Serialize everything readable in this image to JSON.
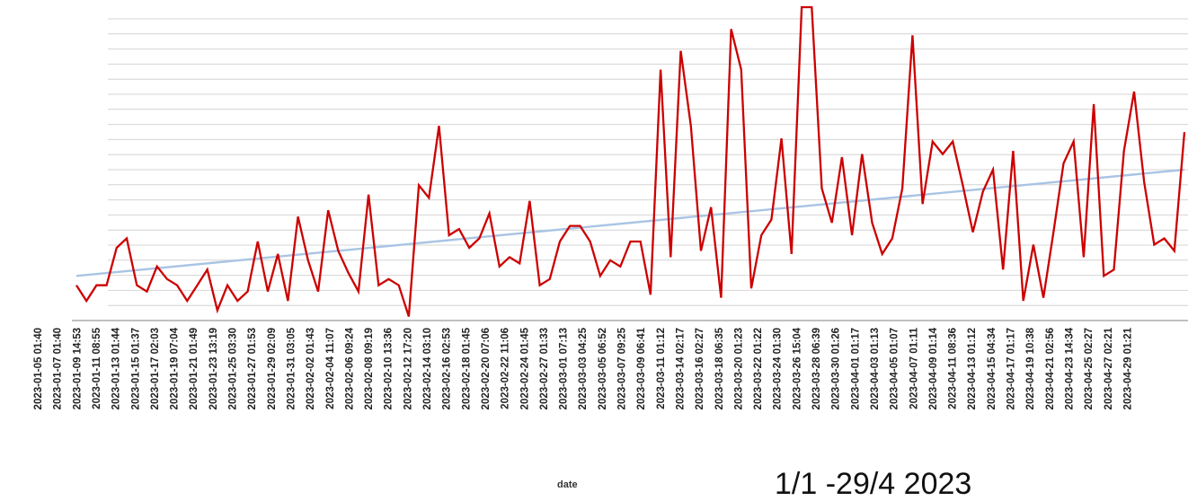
{
  "chart_data": {
    "type": "line",
    "title": "",
    "xlabel": "date",
    "ylabel": "",
    "caption": "1/1 -29/4 2023",
    "ylim": [
      0,
      100
    ],
    "grid": true,
    "x_ticks": [
      "2023-01-05 01:40",
      "2023-01-07 01:40",
      "2023-01-09 14:53",
      "2023-01-11 08:55",
      "2023-01-13 01:44",
      "2023-01-15 01:37",
      "2023-01-17 02:03",
      "2023-01-19 07:04",
      "2023-01-21 01:49",
      "2023-01-23 13:19",
      "2023-01-25 03:30",
      "2023-01-27 01:53",
      "2023-01-29 02:09",
      "2023-01-31 03:05",
      "2023-02-02 01:43",
      "2023-02-04 11:07",
      "2023-02-06 09:24",
      "2023-02-08 09:19",
      "2023-02-10 13:36",
      "2023-02-12 17:20",
      "2023-02-14 03:10",
      "2023-02-16 02:53",
      "2023-02-18 01:45",
      "2023-02-20 07:06",
      "2023-02-22 11:06",
      "2023-02-24 01:45",
      "2023-02-27 01:33",
      "2023-03-01 07:13",
      "2023-03-03 04:25",
      "2023-03-05 06:52",
      "2023-03-07 09:25",
      "2023-03-09 06:41",
      "2023-03-11 01:12",
      "2023-03-14 02:17",
      "2023-03-16 02:27",
      "2023-03-18 06:35",
      "2023-03-20 01:23",
      "2023-03-22 01:22",
      "2023-03-24 01:30",
      "2023-03-26 15:04",
      "2023-03-28 06:39",
      "2023-03-30 01:26",
      "2023-04-01 01:17",
      "2023-04-03 01:13",
      "2023-04-05 01:07",
      "2023-04-07 01:11",
      "2023-04-09 01:14",
      "2023-04-11 08:36",
      "2023-04-13 01:12",
      "2023-04-15 04:34",
      "2023-04-17 01:17",
      "2023-04-19 10:38",
      "2023-04-21 02:56",
      "2023-04-23 14:34",
      "2023-04-25 02:27",
      "2023-04-27 02:21",
      "2023-04-29 01:21"
    ],
    "series": [
      {
        "color": "#cc0000",
        "values": [
          11,
          6,
          11,
          11,
          23,
          26,
          11,
          9,
          17,
          13,
          11,
          6,
          11,
          16,
          3,
          11,
          6,
          9,
          25,
          9,
          21,
          6,
          33,
          19,
          9,
          35,
          22,
          15,
          9,
          40,
          11,
          13,
          11,
          1,
          43,
          39,
          62,
          27,
          29,
          23,
          26,
          34,
          17,
          20,
          18,
          38,
          11,
          13,
          25,
          30,
          30,
          25,
          14,
          19,
          17,
          25,
          25,
          8,
          80,
          20,
          86,
          62,
          22,
          36,
          7,
          93,
          80,
          10,
          27,
          32,
          58,
          21,
          100,
          100,
          42,
          31,
          52,
          27,
          53,
          31,
          21,
          26,
          42,
          91,
          37,
          57,
          53,
          57,
          43,
          28,
          41,
          48,
          16,
          54,
          6,
          24,
          7,
          28,
          50,
          57,
          20,
          69,
          14,
          16,
          54,
          73,
          44,
          24,
          26,
          22,
          60
        ]
      },
      {
        "color": "#a9c4e4",
        "values": [
          14,
          48
        ]
      }
    ]
  }
}
